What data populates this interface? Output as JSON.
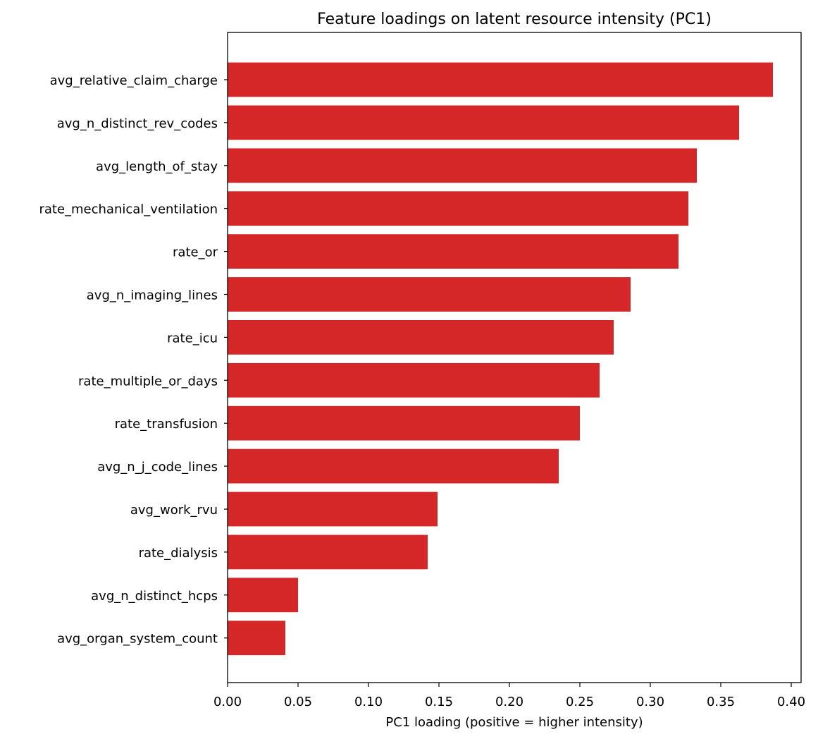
{
  "chart_data": {
    "type": "bar",
    "orientation": "horizontal",
    "title": "Feature loadings on latent resource intensity (PC1)",
    "xlabel": "PC1 loading (positive = higher intensity)",
    "ylabel": "",
    "xlim": [
      0,
      0.407
    ],
    "xticks": [
      "0.00",
      "0.05",
      "0.10",
      "0.15",
      "0.20",
      "0.25",
      "0.30",
      "0.35",
      "0.40"
    ],
    "grid": false,
    "bar_color": "#d62728",
    "categories": [
      "avg_relative_claim_charge",
      "avg_n_distinct_rev_codes",
      "avg_length_of_stay",
      "rate_mechanical_ventilation",
      "rate_or",
      "avg_n_imaging_lines",
      "rate_icu",
      "rate_multiple_or_days",
      "rate_transfusion",
      "avg_n_j_code_lines",
      "avg_work_rvu",
      "rate_dialysis",
      "avg_n_distinct_hcps",
      "avg_organ_system_count"
    ],
    "values": [
      0.387,
      0.363,
      0.333,
      0.327,
      0.32,
      0.286,
      0.274,
      0.264,
      0.25,
      0.235,
      0.149,
      0.142,
      0.05,
      0.041
    ]
  }
}
